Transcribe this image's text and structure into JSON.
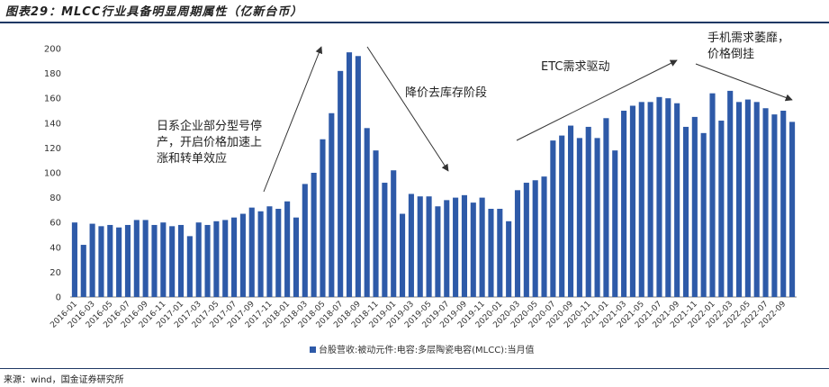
{
  "title": "图表29：MLCC行业具备明显周期属性（亿新台币）",
  "source": "来源：wind，国金证券研究所",
  "colors": {
    "bar": "#2e5aa8",
    "rule": "#1f3864",
    "axis": "#888888",
    "arrow": "#333333"
  },
  "annotations": [
    {
      "lines": [
        "日系企业部分型号停",
        "产，开启价格加速上",
        "涨和转单效应"
      ]
    },
    {
      "lines": [
        "降价去库存阶段"
      ]
    },
    {
      "lines": [
        "ETC需求驱动"
      ]
    },
    {
      "lines": [
        "手机需求萎靡，",
        "价格倒挂"
      ]
    }
  ],
  "chart_data": {
    "type": "bar",
    "title": "",
    "xlabel": "",
    "ylabel": "",
    "ylim": [
      0,
      200
    ],
    "yticks": [
      0,
      20,
      40,
      60,
      80,
      100,
      120,
      140,
      160,
      180,
      200
    ],
    "legend": {
      "position": "bottom",
      "label": "台股营收:被动元件:电容:多层陶瓷电容(MLCC):当月值"
    },
    "categories": [
      "2016-01",
      "2016-02",
      "2016-03",
      "2016-04",
      "2016-05",
      "2016-06",
      "2016-07",
      "2016-08",
      "2016-09",
      "2016-10",
      "2016-11",
      "2016-12",
      "2017-01",
      "2017-02",
      "2017-03",
      "2017-04",
      "2017-05",
      "2017-06",
      "2017-07",
      "2017-08",
      "2017-09",
      "2017-10",
      "2017-11",
      "2017-12",
      "2018-01",
      "2018-02",
      "2018-03",
      "2018-04",
      "2018-05",
      "2018-06",
      "2018-07",
      "2018-08",
      "2018-09",
      "2018-10",
      "2018-11",
      "2018-12",
      "2019-01",
      "2019-02",
      "2019-03",
      "2019-04",
      "2019-05",
      "2019-06",
      "2019-07",
      "2019-08",
      "2019-09",
      "2019-10",
      "2019-11",
      "2019-12",
      "2020-01",
      "2020-02",
      "2020-03",
      "2020-04",
      "2020-05",
      "2020-06",
      "2020-07",
      "2020-08",
      "2020-09",
      "2020-10",
      "2020-11",
      "2020-12",
      "2021-01",
      "2021-02",
      "2021-03",
      "2021-04",
      "2021-05",
      "2021-06",
      "2021-07",
      "2021-08",
      "2021-09",
      "2021-10",
      "2021-11",
      "2021-12",
      "2022-01",
      "2022-02",
      "2022-03",
      "2022-04",
      "2022-05",
      "2022-06",
      "2022-07",
      "2022-08",
      "2022-09",
      "2022-10"
    ],
    "xtick_labels": [
      "2016-01",
      "2016-03",
      "2016-05",
      "2016-07",
      "2016-09",
      "2016-11",
      "2017-01",
      "2017-03",
      "2017-05",
      "2017-07",
      "2017-09",
      "2017-11",
      "2018-01",
      "2018-03",
      "2018-05",
      "2018-07",
      "2018-09",
      "2018-11",
      "2019-01",
      "2019-03",
      "2019-05",
      "2019-07",
      "2019-09",
      "2019-11",
      "2020-01",
      "2020-03",
      "2020-05",
      "2020-07",
      "2020-09",
      "2020-11",
      "2021-01",
      "2021-03",
      "2021-05",
      "2021-07",
      "2021-09",
      "2021-11",
      "2022-01",
      "2022-03",
      "2022-05",
      "2022-07",
      "2022-09"
    ],
    "series": [
      {
        "name": "台股营收:被动元件:电容:多层陶瓷电容(MLCC):当月值",
        "values": [
          60,
          42,
          59,
          57,
          58,
          56,
          58,
          62,
          62,
          58,
          60,
          57,
          58,
          49,
          60,
          58,
          61,
          62,
          64,
          67,
          72,
          69,
          73,
          71,
          77,
          64,
          91,
          100,
          127,
          148,
          182,
          197,
          194,
          136,
          118,
          92,
          102,
          67,
          83,
          81,
          81,
          73,
          78,
          80,
          82,
          76,
          80,
          71,
          71,
          61,
          86,
          92,
          94,
          97,
          126,
          130,
          138,
          128,
          137,
          128,
          144,
          118,
          150,
          154,
          157,
          157,
          161,
          160,
          156,
          137,
          145,
          132,
          164,
          142,
          166,
          157,
          159,
          157,
          152,
          147,
          150,
          141
        ]
      }
    ]
  }
}
